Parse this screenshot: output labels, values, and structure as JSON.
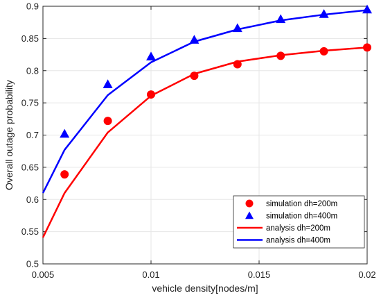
{
  "chart_data": {
    "type": "line",
    "title": "",
    "xlabel": "vehicle density[nodes/m]",
    "ylabel": "Overall outage probability",
    "xlim": [
      0.005,
      0.02
    ],
    "ylim": [
      0.5,
      0.9
    ],
    "x_ticks": [
      0.005,
      0.01,
      0.015,
      0.02
    ],
    "x_tick_labels": [
      "0.005",
      "0.01",
      "0.015",
      "0.02"
    ],
    "y_ticks": [
      0.5,
      0.55,
      0.6,
      0.65,
      0.7,
      0.75,
      0.8,
      0.85,
      0.9
    ],
    "y_tick_labels": [
      "0.5",
      "0.55",
      "0.6",
      "0.65",
      "0.7",
      "0.75",
      "0.8",
      "0.85",
      "0.9"
    ],
    "grid": true,
    "legend_position": "bottom-right",
    "series": [
      {
        "name": "simulation dh=200m",
        "kind": "marker",
        "marker": "circle",
        "color": "#ff0000",
        "points": [
          {
            "x": 0.006,
            "y": 0.639
          },
          {
            "x": 0.008,
            "y": 0.722
          },
          {
            "x": 0.01,
            "y": 0.763
          },
          {
            "x": 0.012,
            "y": 0.792
          },
          {
            "x": 0.014,
            "y": 0.81
          },
          {
            "x": 0.016,
            "y": 0.823
          },
          {
            "x": 0.018,
            "y": 0.83
          },
          {
            "x": 0.02,
            "y": 0.836
          }
        ]
      },
      {
        "name": "simulation dh=400m",
        "kind": "marker",
        "marker": "triangle",
        "color": "#0000ff",
        "points": [
          {
            "x": 0.006,
            "y": 0.702
          },
          {
            "x": 0.008,
            "y": 0.779
          },
          {
            "x": 0.01,
            "y": 0.822
          },
          {
            "x": 0.012,
            "y": 0.848
          },
          {
            "x": 0.014,
            "y": 0.866
          },
          {
            "x": 0.016,
            "y": 0.88
          },
          {
            "x": 0.018,
            "y": 0.888
          },
          {
            "x": 0.02,
            "y": 0.895
          }
        ]
      },
      {
        "name": "analysis dh=200m",
        "kind": "line",
        "color": "#ff0000",
        "points": [
          {
            "x": 0.005,
            "y": 0.541
          },
          {
            "x": 0.006,
            "y": 0.61
          },
          {
            "x": 0.008,
            "y": 0.704
          },
          {
            "x": 0.01,
            "y": 0.761
          },
          {
            "x": 0.012,
            "y": 0.795
          },
          {
            "x": 0.014,
            "y": 0.814
          },
          {
            "x": 0.016,
            "y": 0.824
          },
          {
            "x": 0.018,
            "y": 0.831
          },
          {
            "x": 0.02,
            "y": 0.836
          }
        ]
      },
      {
        "name": "analysis dh=400m",
        "kind": "line",
        "color": "#0000ff",
        "points": [
          {
            "x": 0.005,
            "y": 0.61
          },
          {
            "x": 0.006,
            "y": 0.677
          },
          {
            "x": 0.008,
            "y": 0.762
          },
          {
            "x": 0.01,
            "y": 0.813
          },
          {
            "x": 0.012,
            "y": 0.845
          },
          {
            "x": 0.014,
            "y": 0.864
          },
          {
            "x": 0.016,
            "y": 0.878
          },
          {
            "x": 0.018,
            "y": 0.887
          },
          {
            "x": 0.02,
            "y": 0.894
          }
        ]
      }
    ]
  }
}
